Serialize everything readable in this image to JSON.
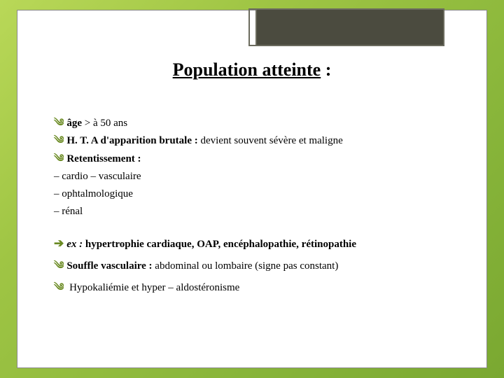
{
  "slide": {
    "title_underlined": "Population atteinte",
    "title_tail": " :",
    "title_fontsize": 26,
    "title_color": "#000000",
    "background_gradient": [
      "#b9d858",
      "#9fc544",
      "#88b53a",
      "#7aa831"
    ],
    "panel_bg": "#ffffff",
    "panel_border": "#888888",
    "header_box_fill": "#4b4b3f",
    "header_box_border": "#6b6b5e",
    "bullet_color": "#6a8a22",
    "body_fontsize": 15,
    "lines": {
      "l1_bold": "âge",
      "l1_rest": " > à 50 ans",
      "l2_bold": "H. T. A d'apparition brutale : ",
      "l2_rest": "devient souvent sévère et maligne",
      "l3_bold": "Retentissement :",
      "l4": "– cardio – vasculaire",
      "l5": "– ophtalmologique",
      "l6": "– rénal",
      "l7_prefix": "ex :",
      "l7_rest": " hypertrophie cardiaque, OAP, encéphalopathie, rétinopathie",
      "l8_bold": "Souffle vasculaire :",
      "l8_rest": " abdominal ou lombaire (signe pas constant)",
      "l9": " Hypokaliémie et hyper – aldostéronisme"
    }
  }
}
